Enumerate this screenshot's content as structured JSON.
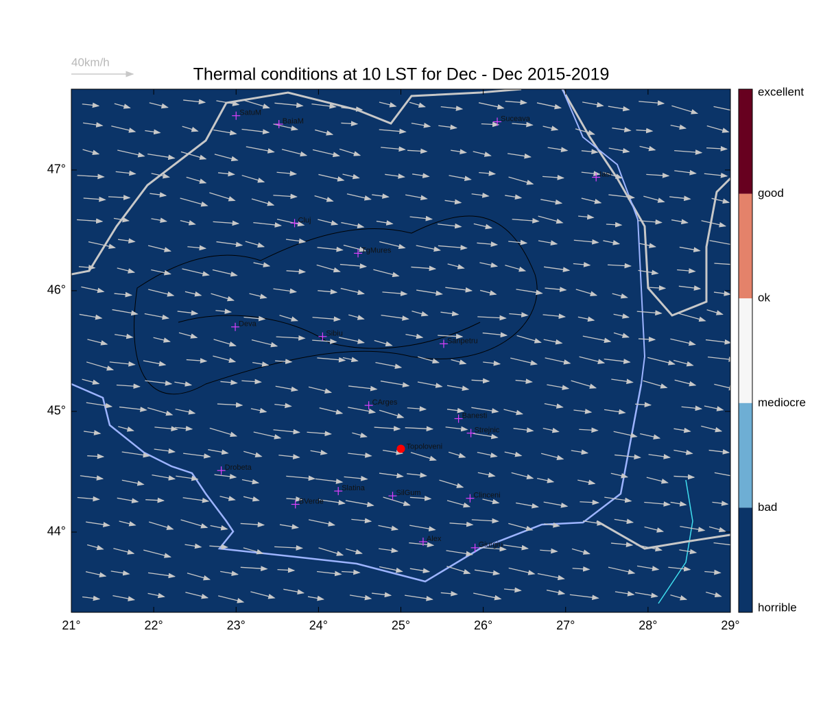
{
  "title": "Thermal conditions at 10 LST for Dec - Dec  2015-2019",
  "wind_scale": "40km/h",
  "x_axis": {
    "range": [
      21,
      29
    ],
    "ticks": [
      {
        "value": 21,
        "label": "21°"
      },
      {
        "value": 22,
        "label": "22°"
      },
      {
        "value": 23,
        "label": "23°"
      },
      {
        "value": 24,
        "label": "24°"
      },
      {
        "value": 25,
        "label": "25°"
      },
      {
        "value": 26,
        "label": "26°"
      },
      {
        "value": 27,
        "label": "27°"
      },
      {
        "value": 28,
        "label": "28°"
      },
      {
        "value": 29,
        "label": "29°"
      }
    ]
  },
  "y_axis": {
    "range": [
      43.335,
      47.67
    ],
    "ticks": [
      {
        "value": 44,
        "label": "44°"
      },
      {
        "value": 45,
        "label": "45°"
      },
      {
        "value": 46,
        "label": "46°"
      },
      {
        "value": 47,
        "label": "47°"
      }
    ]
  },
  "background_color": "#0b3468",
  "cities": [
    {
      "name": "SatuM",
      "lon": 23.0,
      "lat": 47.45
    },
    {
      "name": "BaiaM",
      "lon": 23.52,
      "lat": 47.38
    },
    {
      "name": "Suceava",
      "lon": 26.17,
      "lat": 47.4
    },
    {
      "name": "Iasi",
      "lon": 27.37,
      "lat": 46.94
    },
    {
      "name": "Cluj",
      "lon": 23.71,
      "lat": 46.56
    },
    {
      "name": "TgMures",
      "lon": 24.48,
      "lat": 46.31
    },
    {
      "name": "Deva",
      "lon": 22.99,
      "lat": 45.7
    },
    {
      "name": "Sibiu",
      "lon": 24.05,
      "lat": 45.62
    },
    {
      "name": "Sanpetru",
      "lon": 25.52,
      "lat": 45.56
    },
    {
      "name": "CArges",
      "lon": 24.61,
      "lat": 45.05
    },
    {
      "name": "Banesti",
      "lon": 25.7,
      "lat": 44.94
    },
    {
      "name": "Strejnic",
      "lon": 25.85,
      "lat": 44.82
    },
    {
      "name": "Drobeta",
      "lon": 22.82,
      "lat": 44.51
    },
    {
      "name": "Slatina",
      "lon": 24.24,
      "lat": 44.34
    },
    {
      "name": "SilGum",
      "lon": 24.9,
      "lat": 44.3
    },
    {
      "name": "BVerde",
      "lon": 23.72,
      "lat": 44.23
    },
    {
      "name": "Clinceni",
      "lon": 25.84,
      "lat": 44.28
    },
    {
      "name": "Alex",
      "lon": 25.27,
      "lat": 43.92
    },
    {
      "name": "Giurgiu",
      "lon": 25.9,
      "lat": 43.87
    }
  ],
  "site": {
    "name": "Topoloveni",
    "lon": 25.0,
    "lat": 44.69,
    "color": "#ff0000"
  },
  "colorbar": {
    "labels": [
      "excellent",
      "good",
      "ok",
      "mediocre",
      "bad",
      "horrible"
    ],
    "colors": [
      "#67001f",
      "#e4826a",
      "#f6f6f6",
      "#6eaed4",
      "#0b3468"
    ]
  }
}
